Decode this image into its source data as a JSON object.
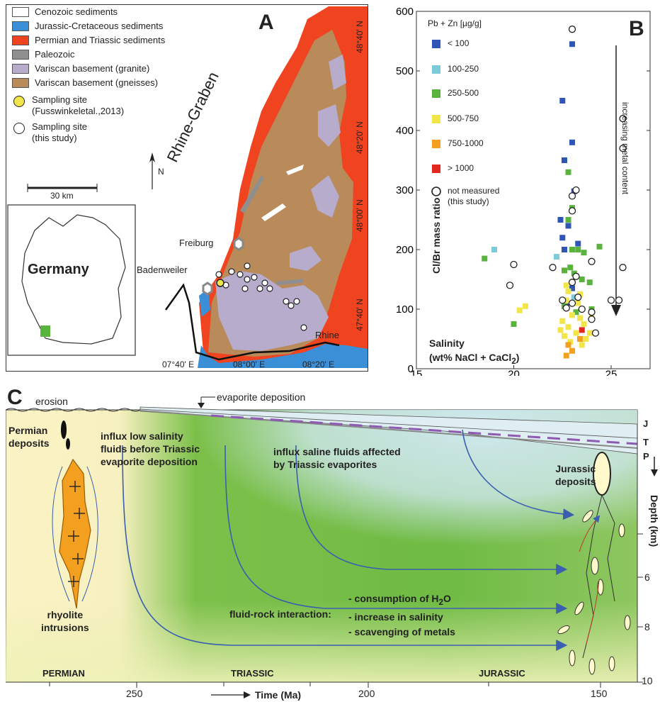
{
  "panelA": {
    "letter": "A",
    "legend": [
      {
        "label": "Cenozoic sediments",
        "color": "#ffffff"
      },
      {
        "label": "Jurassic-Cretaceous sediments",
        "color": "#3b8fd6"
      },
      {
        "label": "Permian and Triassic sediments",
        "color": "#f0431f"
      },
      {
        "label": "Paleozoic",
        "color": "#8f8f8f"
      },
      {
        "label": "Variscan basement (granite)",
        "color": "#b7accb"
      },
      {
        "label": "Variscan basement (gneisses)",
        "color": "#b98a5a"
      }
    ],
    "site1": {
      "line1": "Sampling site",
      "line2": "(Fusswinkeletal.,2013)"
    },
    "site2": {
      "line1": "Sampling site",
      "line2": "(this study)"
    },
    "scale": "30 km",
    "north": "N",
    "country": "Germany",
    "graben": "Rhine-Graben",
    "cities": {
      "freiburg": "Freiburg",
      "badenweiler": "Badenweiler",
      "rhine": "Rhine"
    },
    "lat_labels": [
      "48°40' N",
      "48°20' N",
      "48°00' N",
      "47°40' N"
    ],
    "lon_labels": [
      "07°40' E",
      "08°00' E",
      "08°20' E"
    ]
  },
  "panelB": {
    "letter": "B",
    "legend_title": "Pb + Zn [µg/g]",
    "legend": [
      {
        "label": "< 100",
        "color": "#2f55b5"
      },
      {
        "label": "100-250",
        "color": "#7dcad8"
      },
      {
        "label": "250-500",
        "color": "#5ab33c"
      },
      {
        "label": "500-750",
        "color": "#f2e54a"
      },
      {
        "label": "750-1000",
        "color": "#f3a020"
      },
      {
        "label": "> 1000",
        "color": "#e2281e"
      }
    ],
    "open_label_1": "not measured",
    "open_label_2": "(this study)",
    "arrow_label": "increasing metal content",
    "ylabel": "Cl/Br mass ratio",
    "xlabel_1": "Salinity",
    "xlabel_2": "(wt% NaCl + CaCl2)"
  },
  "chart_data": {
    "type": "scatter",
    "xlabel": "Salinity (wt% NaCl + CaCl2)",
    "ylabel": "Cl/Br mass ratio",
    "xlim": [
      15,
      27
    ],
    "ylim": [
      0,
      600
    ],
    "xticks": [
      "15",
      "20",
      "25"
    ],
    "yticks": [
      "0",
      "100",
      "200",
      "300",
      "400",
      "500",
      "600"
    ],
    "series": [
      {
        "name": "< 100",
        "color": "#2f55b5",
        "x": [
          23.0,
          22.5,
          23.0,
          22.6,
          23.1,
          22.4,
          22.8,
          22.5,
          23.3,
          22.6,
          23.0,
          22.7
        ],
        "y": [
          545,
          450,
          380,
          350,
          298,
          250,
          240,
          220,
          210,
          200,
          135,
          105
        ]
      },
      {
        "name": "100-250",
        "color": "#7dcad8",
        "x": [
          19.0,
          22.2,
          23.1
        ],
        "y": [
          200,
          188,
          120
        ]
      },
      {
        "name": "250-500",
        "color": "#5ab33c",
        "x": [
          22.8,
          23.0,
          18.5,
          23.0,
          23.3,
          23.6,
          24.4,
          22.9,
          22.6,
          23.5,
          23.9,
          20.0,
          22.6,
          23.2,
          24.0,
          22.8,
          23.4,
          23.1
        ],
        "y": [
          330,
          270,
          185,
          200,
          200,
          195,
          205,
          170,
          165,
          150,
          145,
          75,
          105,
          95,
          100,
          250,
          125,
          160
        ]
      },
      {
        "name": "500-750",
        "color": "#f2e54a",
        "x": [
          20.3,
          22.7,
          23.0,
          23.4,
          22.5,
          22.8,
          23.6,
          23.9,
          22.6,
          23.2,
          23.7,
          22.9,
          23.5,
          22.4,
          20.6,
          22.8,
          23.3,
          24.0,
          22.7,
          23.4
        ],
        "y": [
          98,
          115,
          90,
          85,
          80,
          70,
          75,
          60,
          55,
          60,
          50,
          45,
          40,
          65,
          105,
          130,
          110,
          85,
          140,
          125
        ]
      },
      {
        "name": "750-1000",
        "color": "#f3a020",
        "x": [
          22.8,
          23.0,
          22.7,
          23.4
        ],
        "y": [
          40,
          30,
          22,
          50
        ]
      },
      {
        "name": "> 1000",
        "color": "#e2281e",
        "x": [
          23.5
        ],
        "y": [
          65
        ]
      },
      {
        "name": "not measured (this study)",
        "color": "#ffffff",
        "x": [
          23.0,
          25.6,
          25.6,
          23.2,
          23.0,
          23.0,
          24.0,
          25.6,
          22.0,
          20.0,
          19.8,
          23.2,
          23.0,
          22.5,
          23.0,
          23.5,
          24.0,
          24.2,
          25.0,
          25.4,
          22.7,
          23.3,
          24.0
        ],
        "y": [
          570,
          420,
          370,
          300,
          290,
          265,
          180,
          170,
          170,
          175,
          140,
          155,
          145,
          115,
          110,
          100,
          95,
          60,
          115,
          115,
          102,
          120,
          83
        ]
      }
    ]
  },
  "panelC": {
    "letter": "C",
    "erosion": "erosion",
    "evaporite": "evaporite deposition",
    "permian_deposits_1": "Permian",
    "permian_deposits_2": "deposits",
    "influx_low_1": "influx low salinity",
    "influx_low_2": "fluids before Triassic",
    "influx_low_3": "evaporite deposition",
    "influx_saline_1": "influx saline fluids affected",
    "influx_saline_2": "by Triassic evaporites",
    "jurassic_1": "Jurassic",
    "jurassic_2": "deposits",
    "rhyolite_1": "rhyolite",
    "rhyolite_2": "intrusions",
    "frock_label": "fluid-rock interaction:",
    "frock_1": "- consumption of H2O",
    "frock_2": "- increase in salinity",
    "frock_3": "- scavenging of metals",
    "period_permian": "PERMIAN",
    "period_triassic": "TRIASSIC",
    "period_jurassic": "JURASSIC",
    "strat_j": "J",
    "strat_t": "T",
    "strat_p": "P",
    "depth_label": "Depth (km)",
    "depth_ticks": [
      "6",
      "8",
      "10"
    ],
    "time_ticks": [
      "250",
      "200",
      "150"
    ],
    "time_label": "Time (Ma)"
  }
}
